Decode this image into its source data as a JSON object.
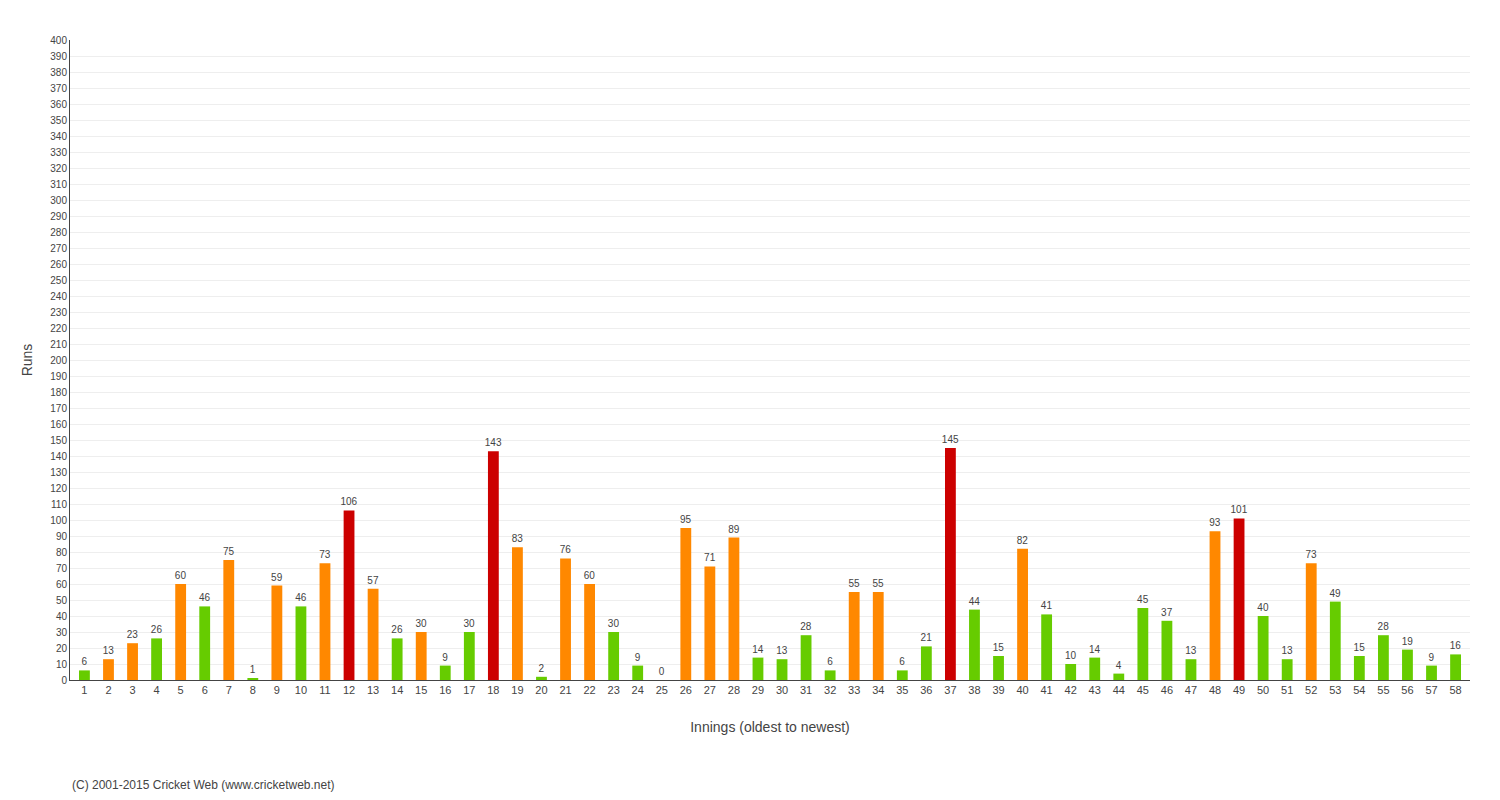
{
  "chart_data": {
    "type": "bar",
    "categories": [
      "1",
      "2",
      "3",
      "4",
      "5",
      "6",
      "7",
      "8",
      "9",
      "10",
      "11",
      "12",
      "13",
      "14",
      "15",
      "16",
      "17",
      "18",
      "19",
      "20",
      "21",
      "22",
      "23",
      "24",
      "25",
      "26",
      "27",
      "28",
      "29",
      "30",
      "31",
      "32",
      "33",
      "34",
      "35",
      "36",
      "37",
      "38",
      "39",
      "40",
      "41",
      "42",
      "43",
      "44",
      "45",
      "46",
      "47",
      "48",
      "49",
      "50",
      "51",
      "52",
      "53",
      "54",
      "55",
      "56",
      "57",
      "58"
    ],
    "values": [
      6,
      13,
      23,
      26,
      60,
      46,
      75,
      1,
      59,
      46,
      73,
      106,
      57,
      26,
      30,
      9,
      30,
      143,
      83,
      2,
      76,
      60,
      30,
      9,
      0,
      95,
      71,
      89,
      14,
      13,
      28,
      6,
      55,
      55,
      6,
      21,
      145,
      44,
      15,
      82,
      41,
      10,
      14,
      4,
      45,
      37,
      13,
      93,
      101,
      40,
      13,
      73,
      49,
      15,
      28,
      19,
      9,
      16
    ],
    "colors": [
      "#66cc00",
      "#ff8800",
      "#ff8800",
      "#66cc00",
      "#ff8800",
      "#66cc00",
      "#ff8800",
      "#66cc00",
      "#ff8800",
      "#66cc00",
      "#ff8800",
      "#cc0000",
      "#ff8800",
      "#66cc00",
      "#ff8800",
      "#66cc00",
      "#66cc00",
      "#cc0000",
      "#ff8800",
      "#66cc00",
      "#ff8800",
      "#ff8800",
      "#66cc00",
      "#66cc00",
      "#66cc00",
      "#ff8800",
      "#ff8800",
      "#ff8800",
      "#66cc00",
      "#66cc00",
      "#66cc00",
      "#66cc00",
      "#ff8800",
      "#ff8800",
      "#66cc00",
      "#66cc00",
      "#cc0000",
      "#66cc00",
      "#66cc00",
      "#ff8800",
      "#66cc00",
      "#66cc00",
      "#66cc00",
      "#66cc00",
      "#66cc00",
      "#66cc00",
      "#66cc00",
      "#ff8800",
      "#cc0000",
      "#66cc00",
      "#66cc00",
      "#ff8800",
      "#66cc00",
      "#66cc00",
      "#66cc00",
      "#66cc00",
      "#66cc00",
      "#66cc00"
    ],
    "x_label": "Innings (oldest to newest)",
    "y_label": "Runs",
    "ylim": [
      0,
      400
    ],
    "yticks": [
      0,
      10,
      20,
      30,
      40,
      50,
      60,
      70,
      80,
      90,
      100,
      110,
      120,
      130,
      140,
      150,
      160,
      170,
      180,
      190,
      200,
      210,
      220,
      230,
      240,
      250,
      260,
      270,
      280,
      290,
      300,
      310,
      320,
      330,
      340,
      350,
      360,
      370,
      380,
      390,
      400
    ],
    "grid": true,
    "data_labels": true,
    "annotations": [
      "(C) 2001-2015 Cricket Web (www.cricketweb.net)"
    ]
  }
}
